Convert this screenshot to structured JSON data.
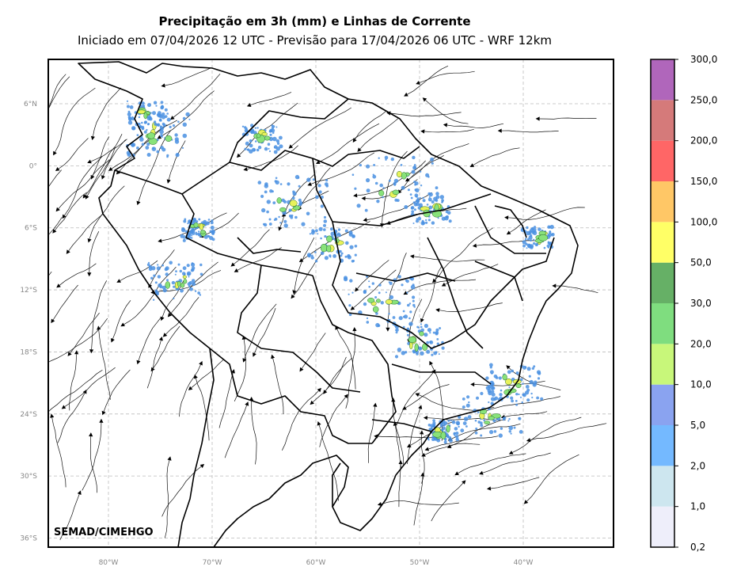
{
  "title": "Precipitação em 3h (mm) e Linhas de Corrente",
  "subtitle": "Iniciado em 07/04/2026 12 UTC - Previsão para 17/04/2026 06 UTC - WRF 12km",
  "watermark": "SEMAD/CIMEHGO",
  "lat_ticks": [
    {
      "label": "6°N",
      "lat": 6
    },
    {
      "label": "0°",
      "lat": 0
    },
    {
      "label": "6°S",
      "lat": -6
    },
    {
      "label": "12°S",
      "lat": -12
    },
    {
      "label": "18°S",
      "lat": -18
    },
    {
      "label": "24°S",
      "lat": -24
    },
    {
      "label": "30°S",
      "lat": -30
    },
    {
      "label": "36°S",
      "lat": -36
    }
  ],
  "lon_ticks": [
    {
      "label": "80°W",
      "lon": -80
    },
    {
      "label": "70°W",
      "lon": -70
    },
    {
      "label": "60°W",
      "lon": -60
    },
    {
      "label": "50°W",
      "lon": -50
    },
    {
      "label": "40°W",
      "lon": -40
    }
  ],
  "colorbar": {
    "labels": [
      "0,2",
      "1,0",
      "2,0",
      "5,0",
      "10,0",
      "20,0",
      "30,0",
      "50,0",
      "100,0",
      "150,0",
      "200,0",
      "250,0",
      "300,0"
    ],
    "colors": [
      "#eeeefa",
      "#cde6ef",
      "#74b9ff",
      "#8aa3f0",
      "#c8f77a",
      "#7fdd7f",
      "#66b066",
      "#ffff66",
      "#ffc766",
      "#ff6666",
      "#d57a7a",
      "#b066bb"
    ]
  },
  "colors": {
    "grid": "#bbbbbb",
    "border": "#000000",
    "rain_light": "#4a90e2",
    "rain_mod": "#88e27a",
    "rain_heavy": "#e8f25a"
  }
}
